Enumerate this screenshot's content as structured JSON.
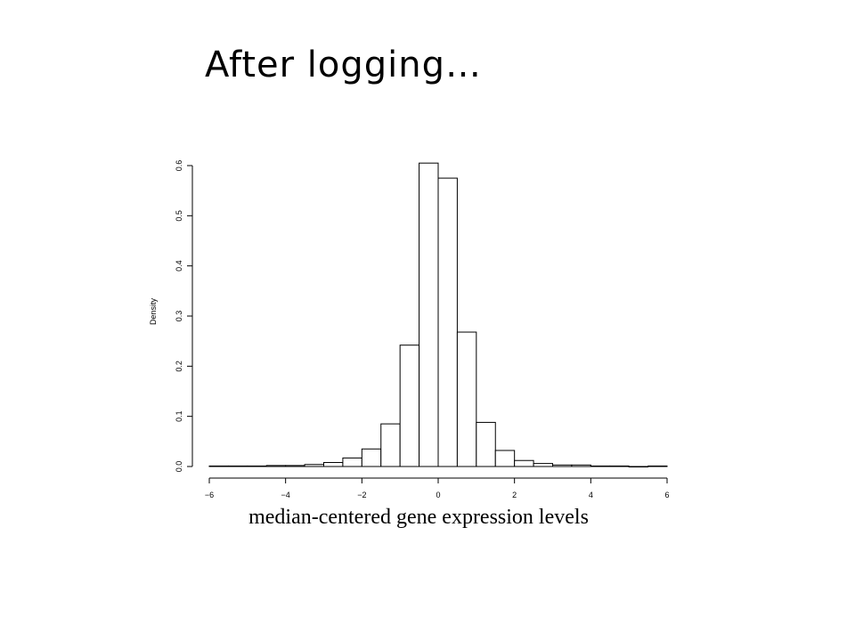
{
  "slide": {
    "title": "After logging…"
  },
  "chart_data": {
    "type": "bar",
    "subtype": "histogram",
    "xlabel": "median-centered gene expression levels",
    "ylabel": "Density",
    "xlim": [
      -6,
      6
    ],
    "ylim": [
      0,
      0.6
    ],
    "xticks": [
      "−6",
      "−4",
      "−2",
      "0",
      "2",
      "4",
      "6"
    ],
    "yticks": [
      "0.0",
      "0.1",
      "0.2",
      "0.3",
      "0.4",
      "0.5",
      "0.6"
    ],
    "bin_edges": [
      -6,
      -5.5,
      -5,
      -4.5,
      -4,
      -3.5,
      -3,
      -2.5,
      -2,
      -1.5,
      -1,
      -0.5,
      0,
      0.5,
      1,
      1.5,
      2,
      2.5,
      3,
      3.5,
      4,
      4.5,
      5,
      5.5,
      6
    ],
    "densities": [
      0.001,
      0.001,
      0.001,
      0.002,
      0.002,
      0.004,
      0.008,
      0.017,
      0.035,
      0.085,
      0.242,
      0.605,
      0.575,
      0.268,
      0.088,
      0.032,
      0.012,
      0.006,
      0.003,
      0.003,
      0.001,
      0.001,
      0.0,
      0.001
    ],
    "grid": false,
    "legend": "none"
  }
}
